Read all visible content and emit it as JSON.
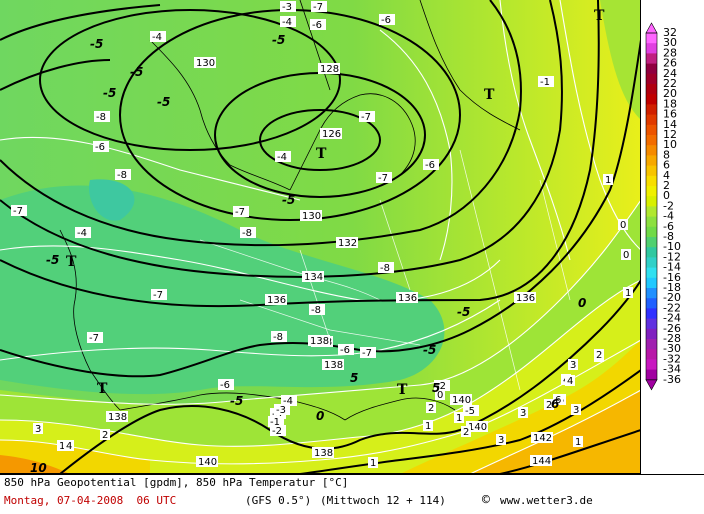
{
  "legend": {
    "values": [
      "32",
      "30",
      "28",
      "26",
      "24",
      "22",
      "20",
      "18",
      "16",
      "14",
      "12",
      "10",
      "8",
      "6",
      "4",
      "2",
      "0",
      "-2",
      "-4",
      "-6",
      "-8",
      "-10",
      "-12",
      "-14",
      "-16",
      "-18",
      "-20",
      "-22",
      "-24",
      "-26",
      "-28",
      "-30",
      "-32",
      "-34",
      "-36"
    ],
    "colors": [
      "#ff66ff",
      "#e040e0",
      "#c02080",
      "#900040",
      "#a0002a",
      "#b00010",
      "#c00000",
      "#d02000",
      "#e03a00",
      "#ec5400",
      "#f26c00",
      "#f58a00",
      "#f7a800",
      "#f8c400",
      "#f8de00",
      "#f0f000",
      "#d8f000",
      "#b0e830",
      "#8ce040",
      "#70da48",
      "#50d070",
      "#30c8a0",
      "#30d0c8",
      "#30e0f0",
      "#20c8ff",
      "#2090ff",
      "#2060ff",
      "#3030ff",
      "#6030e0",
      "#8020c0",
      "#a020b0",
      "#b818a8",
      "#c818c0",
      "#a000a0"
    ]
  },
  "map": {
    "isoheights": [
      "130",
      "128",
      "126",
      "130",
      "132",
      "134",
      "136",
      "136",
      "136",
      "138",
      "138",
      "138",
      "138",
      "140",
      "140",
      "142",
      "144",
      "140",
      "138"
    ],
    "temp_labels": [
      "-3",
      "-4",
      "-6",
      "-7",
      "-6",
      "-4",
      "-8",
      "-1",
      "-7",
      "-6",
      "-6",
      "-8",
      "-8",
      "-8",
      "-7",
      "-7",
      "-8",
      "-7",
      "-6",
      "-4",
      "-7",
      "-7",
      "-8",
      "-7",
      "-6",
      "-4",
      "-3",
      "-2",
      "-1",
      "1",
      "0",
      "0",
      "1",
      "2",
      "3",
      "4",
      "5",
      "3",
      "2",
      "1",
      "3",
      "4",
      "2",
      "1",
      "1",
      "3",
      "2",
      "1",
      "0",
      "2",
      "3",
      "1",
      "-2",
      "-3",
      "-4",
      "2",
      "4",
      "6",
      "-5"
    ],
    "bold_labels": [
      "-5",
      "-5",
      "-5",
      "-5",
      "-5",
      "-5",
      "-5",
      "-5",
      "-5",
      "-5",
      "0",
      "0",
      "5",
      "5",
      "6",
      "10"
    ],
    "lows": [
      "T",
      "T",
      "T",
      "T",
      "T",
      "T"
    ]
  },
  "footer": {
    "line1": "850 hPa Geopotential [gpdm], 850 hPa Temperatur [°C]",
    "date": "Montag, 07-04-2008  06 UTC",
    "model": "(GFS 0.5°)",
    "valid": "(Mittwoch 12 + 114)",
    "copyright": "©",
    "site": "www.wetter3.de"
  }
}
